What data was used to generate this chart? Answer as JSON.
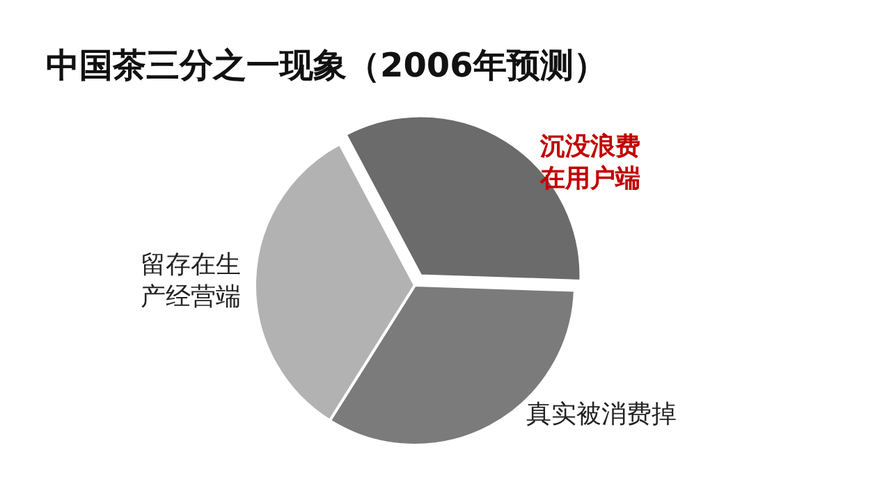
{
  "chart_data": {
    "type": "pie",
    "title": "中国茶三分之一现象（2006年预测）",
    "categories": [
      "沉没浪费在用户端",
      "真实被消费掉",
      "留存在生产经营端"
    ],
    "values": [
      33.3,
      33.4,
      33.3
    ],
    "colors": [
      "#6b6b6b",
      "#7b7b7b",
      "#b2b2b2"
    ],
    "legend": false
  }
}
